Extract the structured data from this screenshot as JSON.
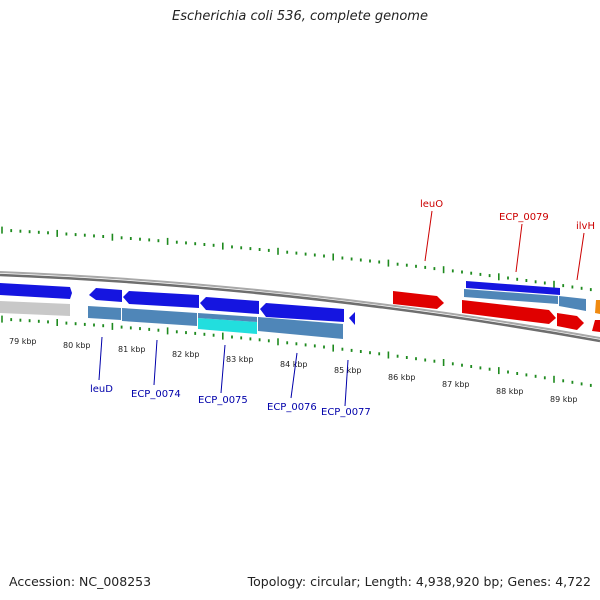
{
  "title": "Escherichia coli 536, complete genome",
  "footer": {
    "accession": "Accession: NC_008253",
    "stats": "Topology: circular; Length: 4,938,920 bp; Genes: 4,722"
  },
  "colors": {
    "tick": "#1e8a1e",
    "backbone": "#808080",
    "forward_gene": "#e00000",
    "reverse_gene": "#1515e0",
    "cds_forward": "#e00000",
    "cds_reverse": "#4f86b8",
    "highlight_cds": "#22dede",
    "gray_feature": "#c8c8c8",
    "orange_feature": "#f08a10",
    "forward_label": "#cc0000",
    "reverse_label": "#0000aa"
  },
  "scale_labels": [
    "79 kbp",
    "80 kbp",
    "81 kbp",
    "82 kbp",
    "83 kbp",
    "84 kbp",
    "85 kbp",
    "86 kbp",
    "87 kbp",
    "88 kbp",
    "89 kbp"
  ],
  "reverse_genes": [
    {
      "name": "leuD"
    },
    {
      "name": "ECP_0074"
    },
    {
      "name": "ECP_0075"
    },
    {
      "name": "ECP_0076"
    },
    {
      "name": "ECP_0077"
    }
  ],
  "forward_genes": [
    {
      "name": "leuO"
    },
    {
      "name": "ECP_0079"
    },
    {
      "name": "ilvH"
    }
  ]
}
